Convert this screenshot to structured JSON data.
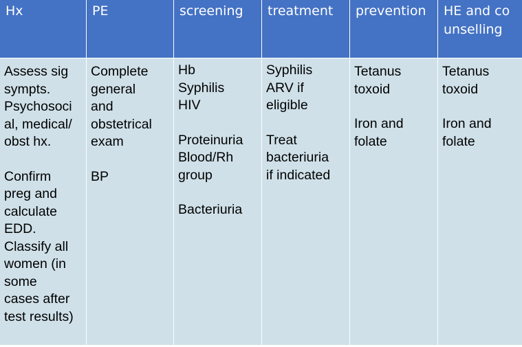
{
  "headers": [
    "Hx",
    "PE",
    "screening",
    "treatment",
    "prevention",
    "HE and counselling"
  ],
  "columns": {
    "hx": [
      "Assess sig",
      "sympts.",
      "Psychosoci",
      "al, medical/",
      "obst hx.",
      "",
      "Confirm",
      "preg and",
      "calculate",
      "EDD.",
      "Classify all",
      "women (in",
      "some",
      "cases after",
      "test results)"
    ],
    "pe": [
      "Complete",
      "general",
      "and",
      "obstetrical",
      "exam",
      "",
      "BP"
    ],
    "screening": [
      "Hb",
      "Syphilis",
      "HIV",
      "",
      "Proteinuria",
      "Blood/Rh",
      "group",
      "",
      "Bacteriuria"
    ],
    "treatment": [
      "Syphilis",
      "ARV if",
      "eligible",
      "",
      "Treat",
      "bacteriuria",
      "if indicated"
    ],
    "prevention": [
      "Tetanus",
      "toxoid",
      "",
      "Iron and",
      "folate"
    ],
    "he_counselling": [
      "Tetanus",
      "toxoid",
      "",
      "Iron and",
      "folate"
    ]
  },
  "colors": {
    "header_bg": "#4472C4",
    "body_bg": "#CFE0E8",
    "header_text": "#FFFFFF"
  }
}
